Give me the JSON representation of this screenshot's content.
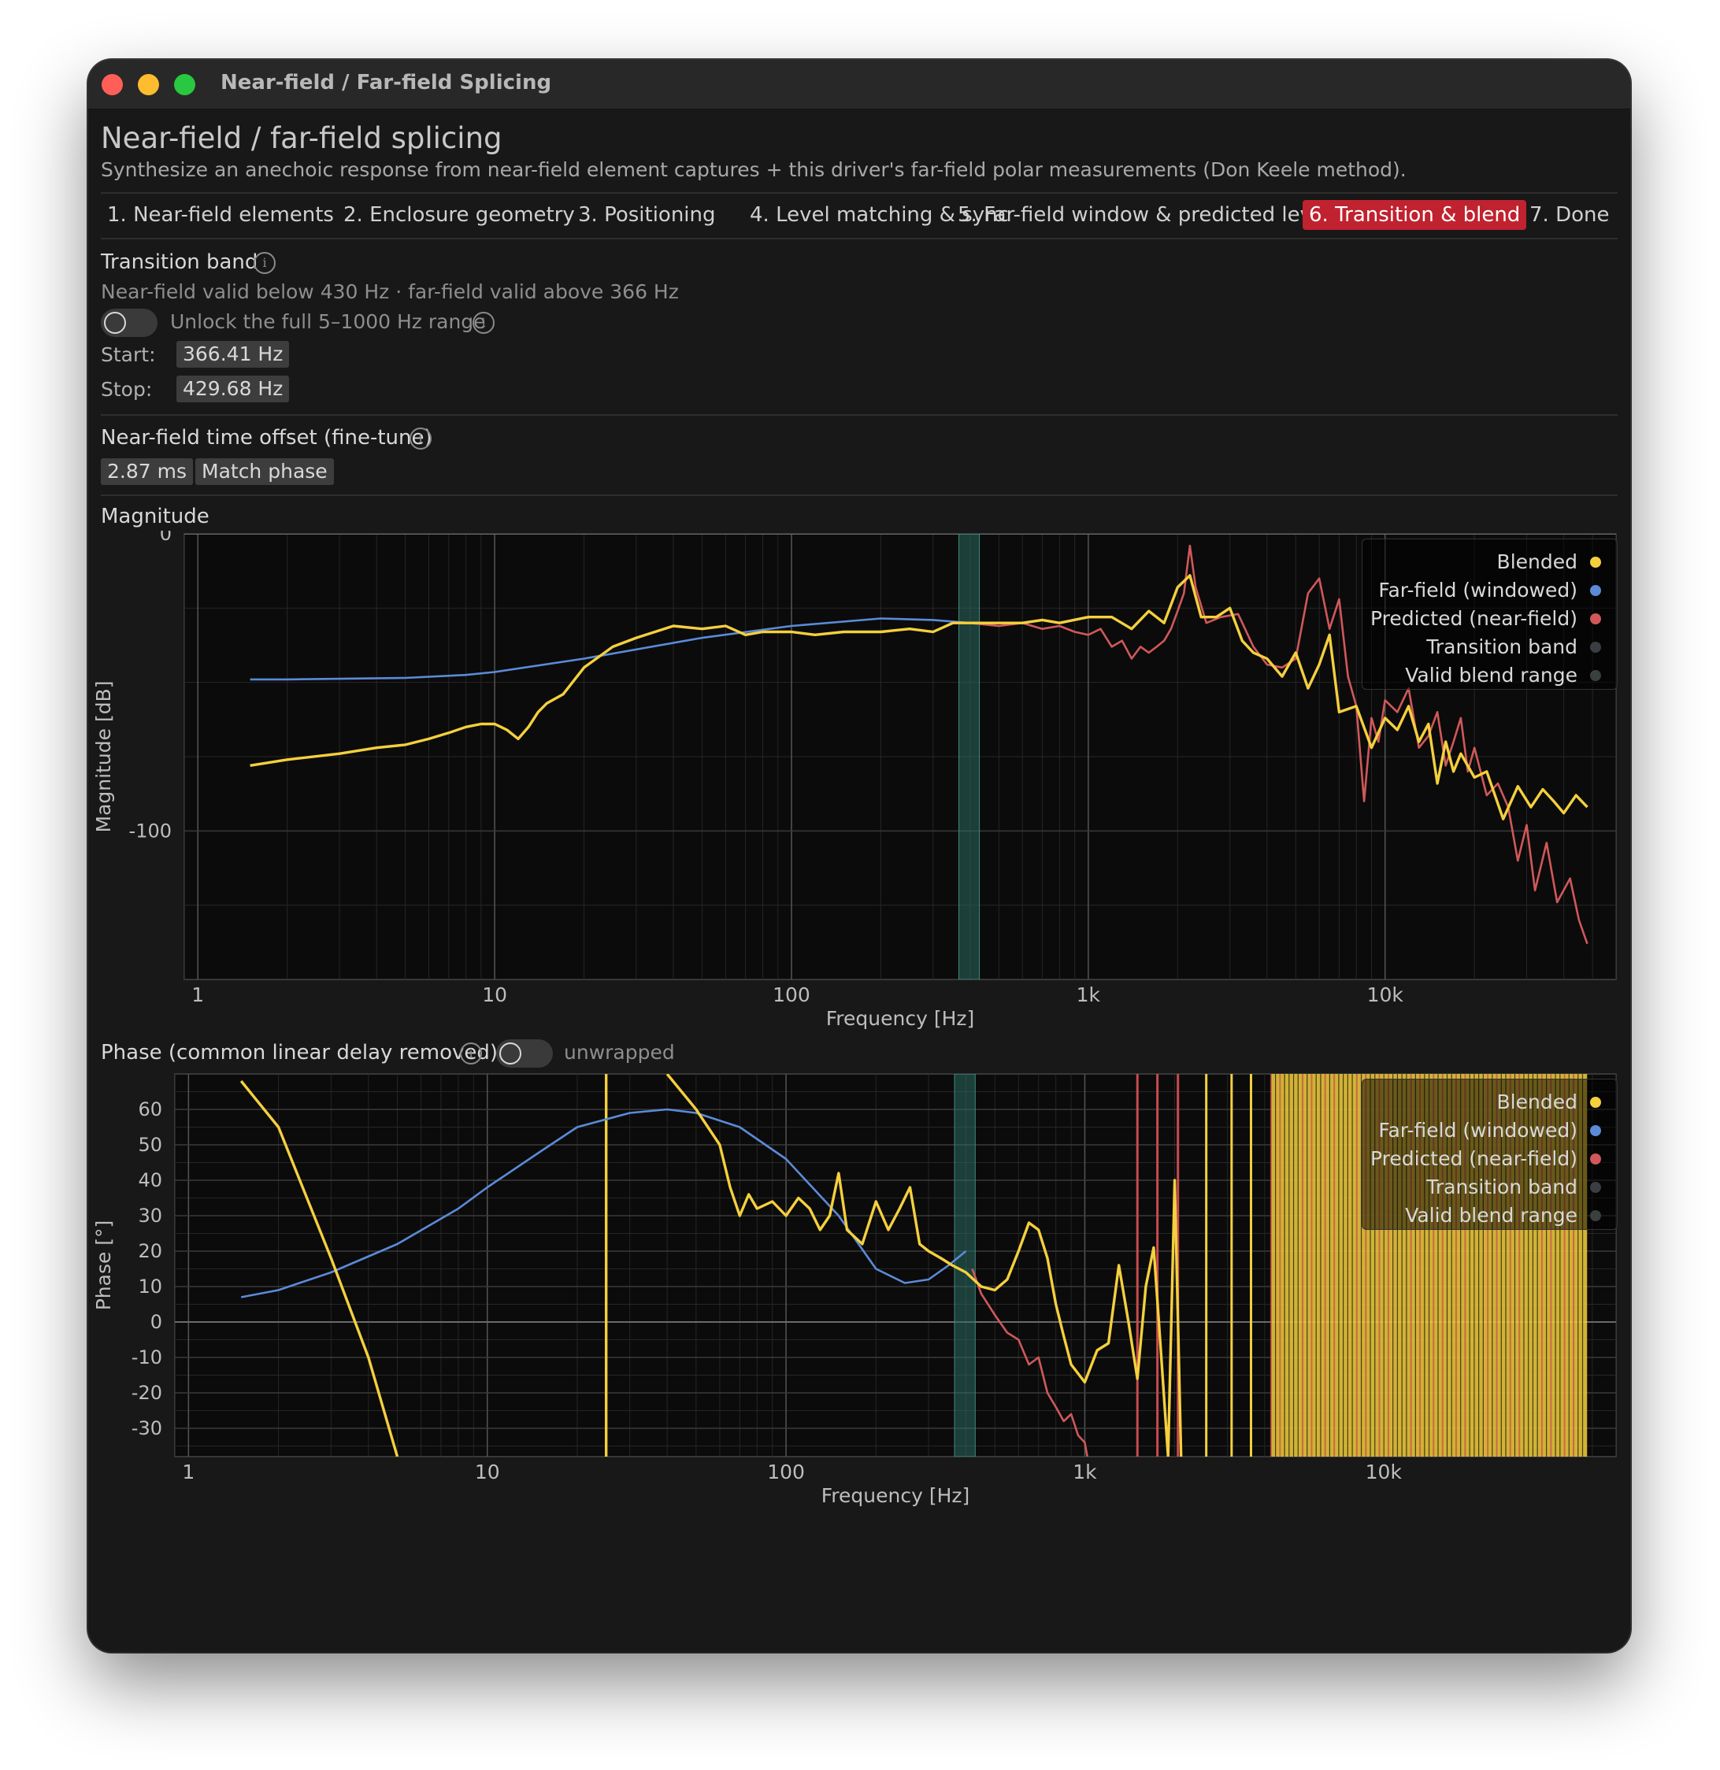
{
  "window": {
    "title": "Near-field / Far-field Splicing"
  },
  "page": {
    "heading": "Near-field / far-field splicing",
    "subtitle": "Synthesize an anechoic response from near-field element captures + this driver's far-field polar measurements (Don Keele method)."
  },
  "tabs": [
    {
      "label": "1. Near-field elements"
    },
    {
      "label": "2. Enclosure geometry"
    },
    {
      "label": "3. Positioning"
    },
    {
      "label": "4. Level matching & sync"
    },
    {
      "label": "5. Far-field window & predicted level"
    },
    {
      "label": "6. Transition & blend",
      "active": true
    },
    {
      "label": "7. Done"
    }
  ],
  "transition": {
    "title": "Transition band",
    "info": "i",
    "validity": "Near-field valid below 430 Hz  ·  far-field valid above 366 Hz",
    "unlock_label": "Unlock the full 5–1000 Hz range",
    "start_label": "Start:",
    "start_value": "366.41 Hz",
    "stop_label": "Stop:",
    "stop_value": "429.68 Hz"
  },
  "offset": {
    "title": "Near-field time offset (fine-tune)",
    "value": "2.87 ms",
    "match_button": "Match phase"
  },
  "magnitude": {
    "title": "Magnitude"
  },
  "phase": {
    "title": "Phase (common linear delay removed)",
    "toggle_label": "unwrapped"
  },
  "legend": {
    "items": [
      {
        "label": "Blended",
        "color": "#f5d03d"
      },
      {
        "label": "Far-field (windowed)",
        "color": "#5b8bd8"
      },
      {
        "label": "Predicted (near-field)",
        "color": "#d0585a"
      },
      {
        "label": "Transition band",
        "color": "#3a3d42"
      },
      {
        "label": "Valid blend range",
        "color": "#3a403c"
      }
    ]
  },
  "chart_data": [
    {
      "type": "line",
      "xlabel": "Frequency [Hz]",
      "ylabel": "Magnitude [dB]",
      "xscale": "log",
      "xlim": [
        0.9,
        60000
      ],
      "ylim": [
        -150,
        0
      ],
      "xticks": [
        {
          "v": 1,
          "label": "1"
        },
        {
          "v": 10,
          "label": "10"
        },
        {
          "v": 100,
          "label": "100"
        },
        {
          "v": 1000,
          "label": "1k"
        },
        {
          "v": 10000,
          "label": "10k"
        }
      ],
      "yticks": [
        {
          "v": 0,
          "label": "0"
        },
        {
          "v": -100,
          "label": "-100"
        }
      ],
      "transition_band": [
        366.41,
        429.68
      ],
      "series": [
        {
          "name": "Far-field (windowed)",
          "color": "#5b8bd8",
          "x": [
            1.5,
            2,
            3,
            5,
            8,
            10,
            20,
            50,
            100,
            200,
            300,
            400,
            500
          ],
          "y": [
            -49,
            -49,
            -48.8,
            -48.5,
            -47.5,
            -46.5,
            -42,
            -35,
            -31,
            -28.5,
            -29,
            -30,
            -31
          ]
        },
        {
          "name": "Predicted (near-field)",
          "color": "#d0585a",
          "x": [
            400,
            500,
            600,
            700,
            800,
            900,
            1000,
            1100,
            1200,
            1300,
            1400,
            1500,
            1600,
            1700,
            1800,
            1900,
            2000,
            2100,
            2200,
            2300,
            2500,
            2800,
            3200,
            3600,
            4000,
            4500,
            5000,
            5500,
            6000,
            6500,
            7000,
            7500,
            8000,
            8500,
            9000,
            9500,
            10000,
            11000,
            12000,
            13000,
            14000,
            15000,
            16000,
            17000,
            18000,
            19000,
            20000,
            22000,
            24000,
            26000,
            28000,
            30000,
            32000,
            35000,
            38000,
            42000,
            45000,
            48000
          ],
          "y": [
            -30,
            -31,
            -30,
            -32,
            -31,
            -33,
            -34,
            -32,
            -38,
            -36,
            -42,
            -38,
            -40,
            -38,
            -36,
            -32,
            -26,
            -20,
            -4,
            -18,
            -30,
            -28,
            -27,
            -38,
            -44,
            -45,
            -42,
            -20,
            -15,
            -32,
            -22,
            -48,
            -58,
            -90,
            -62,
            -70,
            -56,
            -60,
            -52,
            -72,
            -68,
            -60,
            -78,
            -70,
            -62,
            -80,
            -72,
            -88,
            -84,
            -92,
            -110,
            -98,
            -120,
            -104,
            -124,
            -116,
            -130,
            -138
          ]
        },
        {
          "name": "Blended",
          "color": "#f5d03d",
          "x": [
            1.5,
            2,
            3,
            4,
            5,
            6,
            7,
            8,
            9,
            10,
            11,
            12,
            13,
            14,
            15,
            17,
            20,
            25,
            30,
            40,
            50,
            60,
            70,
            80,
            100,
            120,
            150,
            200,
            250,
            300,
            350,
            400,
            450,
            500,
            600,
            700,
            800,
            1000,
            1200,
            1400,
            1600,
            1800,
            2000,
            2200,
            2400,
            2700,
            3000,
            3300,
            3600,
            4000,
            4500,
            5000,
            5500,
            6000,
            6500,
            7000,
            8000,
            9000,
            10000,
            11000,
            12000,
            13000,
            14000,
            15000,
            16000,
            17000,
            18000,
            20000,
            22000,
            25000,
            28000,
            31000,
            34000,
            37000,
            40000,
            44000,
            48000
          ],
          "y": [
            -78,
            -76,
            -74,
            -72,
            -71,
            -69,
            -67,
            -65,
            -64,
            -64,
            -66,
            -69,
            -65,
            -60,
            -57,
            -54,
            -45,
            -38,
            -35,
            -31,
            -32,
            -31,
            -34,
            -33,
            -33,
            -34,
            -33,
            -33,
            -32,
            -33,
            -30,
            -30,
            -30,
            -30,
            -30,
            -29,
            -30,
            -28,
            -28,
            -32,
            -26,
            -30,
            -18,
            -14,
            -28,
            -28,
            -25,
            -36,
            -40,
            -42,
            -48,
            -40,
            -52,
            -44,
            -34,
            -60,
            -58,
            -72,
            -62,
            -66,
            -58,
            -70,
            -64,
            -84,
            -70,
            -80,
            -74,
            -82,
            -80,
            -96,
            -85,
            -92,
            -86,
            -90,
            -94,
            -88,
            -92
          ]
        }
      ]
    },
    {
      "type": "line",
      "xlabel": "Frequency [Hz]",
      "ylabel": "Phase [°]",
      "xscale": "log",
      "xlim": [
        0.9,
        60000
      ],
      "ylim": [
        -38,
        70
      ],
      "xticks": [
        {
          "v": 1,
          "label": "1"
        },
        {
          "v": 10,
          "label": "10"
        },
        {
          "v": 100,
          "label": "100"
        },
        {
          "v": 1000,
          "label": "1k"
        },
        {
          "v": 10000,
          "label": "10k"
        }
      ],
      "yticks": [
        {
          "v": 60,
          "label": "60"
        },
        {
          "v": 50,
          "label": "50"
        },
        {
          "v": 40,
          "label": "40"
        },
        {
          "v": 30,
          "label": "30"
        },
        {
          "v": 20,
          "label": "20"
        },
        {
          "v": 10,
          "label": "10"
        },
        {
          "v": 0,
          "label": "0"
        },
        {
          "v": -10,
          "label": "-10"
        },
        {
          "v": -20,
          "label": "-20"
        },
        {
          "v": -30,
          "label": "-30"
        }
      ],
      "transition_band": [
        366.41,
        429.68
      ],
      "series": [
        {
          "name": "Far-field (windowed)",
          "color": "#5b8bd8",
          "x": [
            1.5,
            2,
            3,
            5,
            8,
            10,
            15,
            20,
            30,
            40,
            50,
            70,
            100,
            150,
            200,
            250,
            300,
            350,
            400
          ],
          "y": [
            7,
            9,
            14,
            22,
            32,
            38,
            48,
            55,
            59,
            60,
            59,
            55,
            46,
            30,
            15,
            11,
            12,
            16,
            20
          ]
        },
        {
          "name": "Predicted (near-field)",
          "color": "#d0585a",
          "x": [
            420,
            450,
            500,
            550,
            600,
            650,
            700,
            750,
            800,
            850,
            900,
            950,
            1000,
            1020
          ],
          "y": [
            15,
            8,
            2,
            -3,
            -5,
            -12,
            -10,
            -20,
            -24,
            -28,
            -26,
            -32,
            -34,
            -38
          ]
        },
        {
          "name": "Blended",
          "color": "#f5d03d",
          "x": [
            1.5,
            2,
            3,
            4,
            5
          ],
          "y": [
            68,
            55,
            18,
            -10,
            -38
          ]
        },
        {
          "name": "Blended",
          "color": "#f5d03d",
          "x": [
            40,
            50,
            60,
            65,
            70,
            75,
            80,
            90,
            100,
            110,
            120,
            130,
            140,
            150,
            160,
            180,
            200,
            220,
            240,
            260,
            280,
            300,
            330,
            360,
            400,
            450,
            500,
            550,
            600,
            650,
            700,
            750,
            800,
            850,
            900,
            1000,
            1100,
            1200,
            1300,
            1400,
            1500,
            1600,
            1700,
            1800,
            1900,
            2000,
            2100
          ],
          "y": [
            70,
            60,
            50,
            38,
            30,
            36,
            32,
            34,
            30,
            35,
            32,
            26,
            30,
            42,
            26,
            22,
            34,
            26,
            32,
            38,
            22,
            20,
            18,
            16,
            14,
            10,
            9,
            12,
            20,
            28,
            26,
            18,
            5,
            -4,
            -12,
            -17,
            -8,
            -6,
            16,
            0,
            -16,
            10,
            21,
            -9,
            -38,
            40,
            -38
          ]
        }
      ]
    }
  ]
}
